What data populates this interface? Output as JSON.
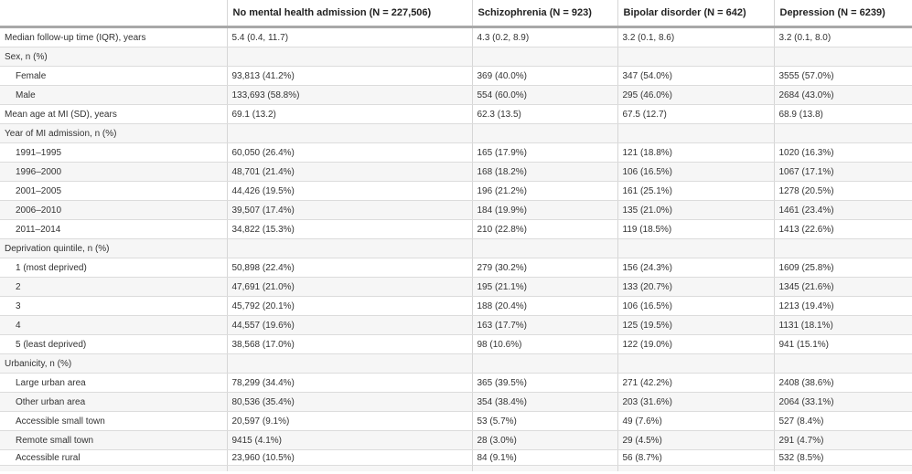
{
  "columns": [
    "",
    "No mental health admission (N = 227,506)",
    "Schizophrenia (N = 923)",
    "Bipolar disorder (N = 642)",
    "Depression (N = 6239)"
  ],
  "rows": [
    {
      "label": "Median follow-up time (IQR), years",
      "indent": false,
      "values": [
        "5.4 (0.4, 11.7)",
        "4.3 (0.2, 8.9)",
        "3.2 (0.1, 8.6)",
        "3.2 (0.1, 8.0)"
      ]
    },
    {
      "label": "Sex, n (%)",
      "indent": false,
      "values": [
        "",
        "",
        "",
        ""
      ]
    },
    {
      "label": "Female",
      "indent": true,
      "values": [
        "93,813 (41.2%)",
        "369 (40.0%)",
        "347 (54.0%)",
        "3555 (57.0%)"
      ]
    },
    {
      "label": "Male",
      "indent": true,
      "values": [
        "133,693 (58.8%)",
        "554 (60.0%)",
        "295 (46.0%)",
        "2684 (43.0%)"
      ]
    },
    {
      "label": "Mean age at MI (SD), years",
      "indent": false,
      "values": [
        "69.1 (13.2)",
        "62.3 (13.5)",
        "67.5 (12.7)",
        "68.9 (13.8)"
      ]
    },
    {
      "label": "Year of MI admission, n (%)",
      "indent": false,
      "values": [
        "",
        "",
        "",
        ""
      ]
    },
    {
      "label": "1991–1995",
      "indent": true,
      "values": [
        "60,050 (26.4%)",
        "165 (17.9%)",
        "121 (18.8%)",
        "1020 (16.3%)"
      ]
    },
    {
      "label": "1996–2000",
      "indent": true,
      "values": [
        "48,701 (21.4%)",
        "168 (18.2%)",
        "106 (16.5%)",
        "1067 (17.1%)"
      ]
    },
    {
      "label": "2001–2005",
      "indent": true,
      "values": [
        "44,426 (19.5%)",
        "196 (21.2%)",
        "161 (25.1%)",
        "1278 (20.5%)"
      ]
    },
    {
      "label": "2006–2010",
      "indent": true,
      "values": [
        "39,507 (17.4%)",
        "184 (19.9%)",
        "135 (21.0%)",
        "1461 (23.4%)"
      ]
    },
    {
      "label": "2011–2014",
      "indent": true,
      "values": [
        "34,822 (15.3%)",
        "210 (22.8%)",
        "119 (18.5%)",
        "1413 (22.6%)"
      ]
    },
    {
      "label": "Deprivation quintile, n (%)",
      "indent": false,
      "values": [
        "",
        "",
        "",
        ""
      ]
    },
    {
      "label": "1 (most deprived)",
      "indent": true,
      "values": [
        "50,898 (22.4%)",
        "279 (30.2%)",
        "156 (24.3%)",
        "1609 (25.8%)"
      ]
    },
    {
      "label": "2",
      "indent": true,
      "values": [
        "47,691 (21.0%)",
        "195 (21.1%)",
        "133 (20.7%)",
        "1345 (21.6%)"
      ]
    },
    {
      "label": "3",
      "indent": true,
      "values": [
        "45,792 (20.1%)",
        "188 (20.4%)",
        "106 (16.5%)",
        "1213 (19.4%)"
      ]
    },
    {
      "label": "4",
      "indent": true,
      "values": [
        "44,557 (19.6%)",
        "163 (17.7%)",
        "125 (19.5%)",
        "1131 (18.1%)"
      ]
    },
    {
      "label": "5 (least deprived)",
      "indent": true,
      "values": [
        "38,568 (17.0%)",
        "98 (10.6%)",
        "122 (19.0%)",
        "941 (15.1%)"
      ]
    },
    {
      "label": "Urbanicity, n (%)",
      "indent": false,
      "values": [
        "",
        "",
        "",
        ""
      ]
    },
    {
      "label": "Large urban area",
      "indent": true,
      "values": [
        "78,299 (34.4%)",
        "365 (39.5%)",
        "271 (42.2%)",
        "2408 (38.6%)"
      ]
    },
    {
      "label": "Other urban area",
      "indent": true,
      "values": [
        "80,536 (35.4%)",
        "354 (38.4%)",
        "203 (31.6%)",
        "2064 (33.1%)"
      ]
    },
    {
      "label": "Accessible small town",
      "indent": true,
      "values": [
        "20,597 (9.1%)",
        "53 (5.7%)",
        "49 (7.6%)",
        "527 (8.4%)"
      ]
    },
    {
      "label": "Remote small town",
      "indent": true,
      "values": [
        "9415 (4.1%)",
        "28 (3.0%)",
        "29 (4.5%)",
        "291 (4.7%)"
      ]
    },
    {
      "label": "Accessible rural",
      "indent": true,
      "values": [
        "23,960 (10.5%)",
        "84 (9.1%)",
        "56 (8.7%)",
        "532 (8.5%)"
      ]
    }
  ]
}
